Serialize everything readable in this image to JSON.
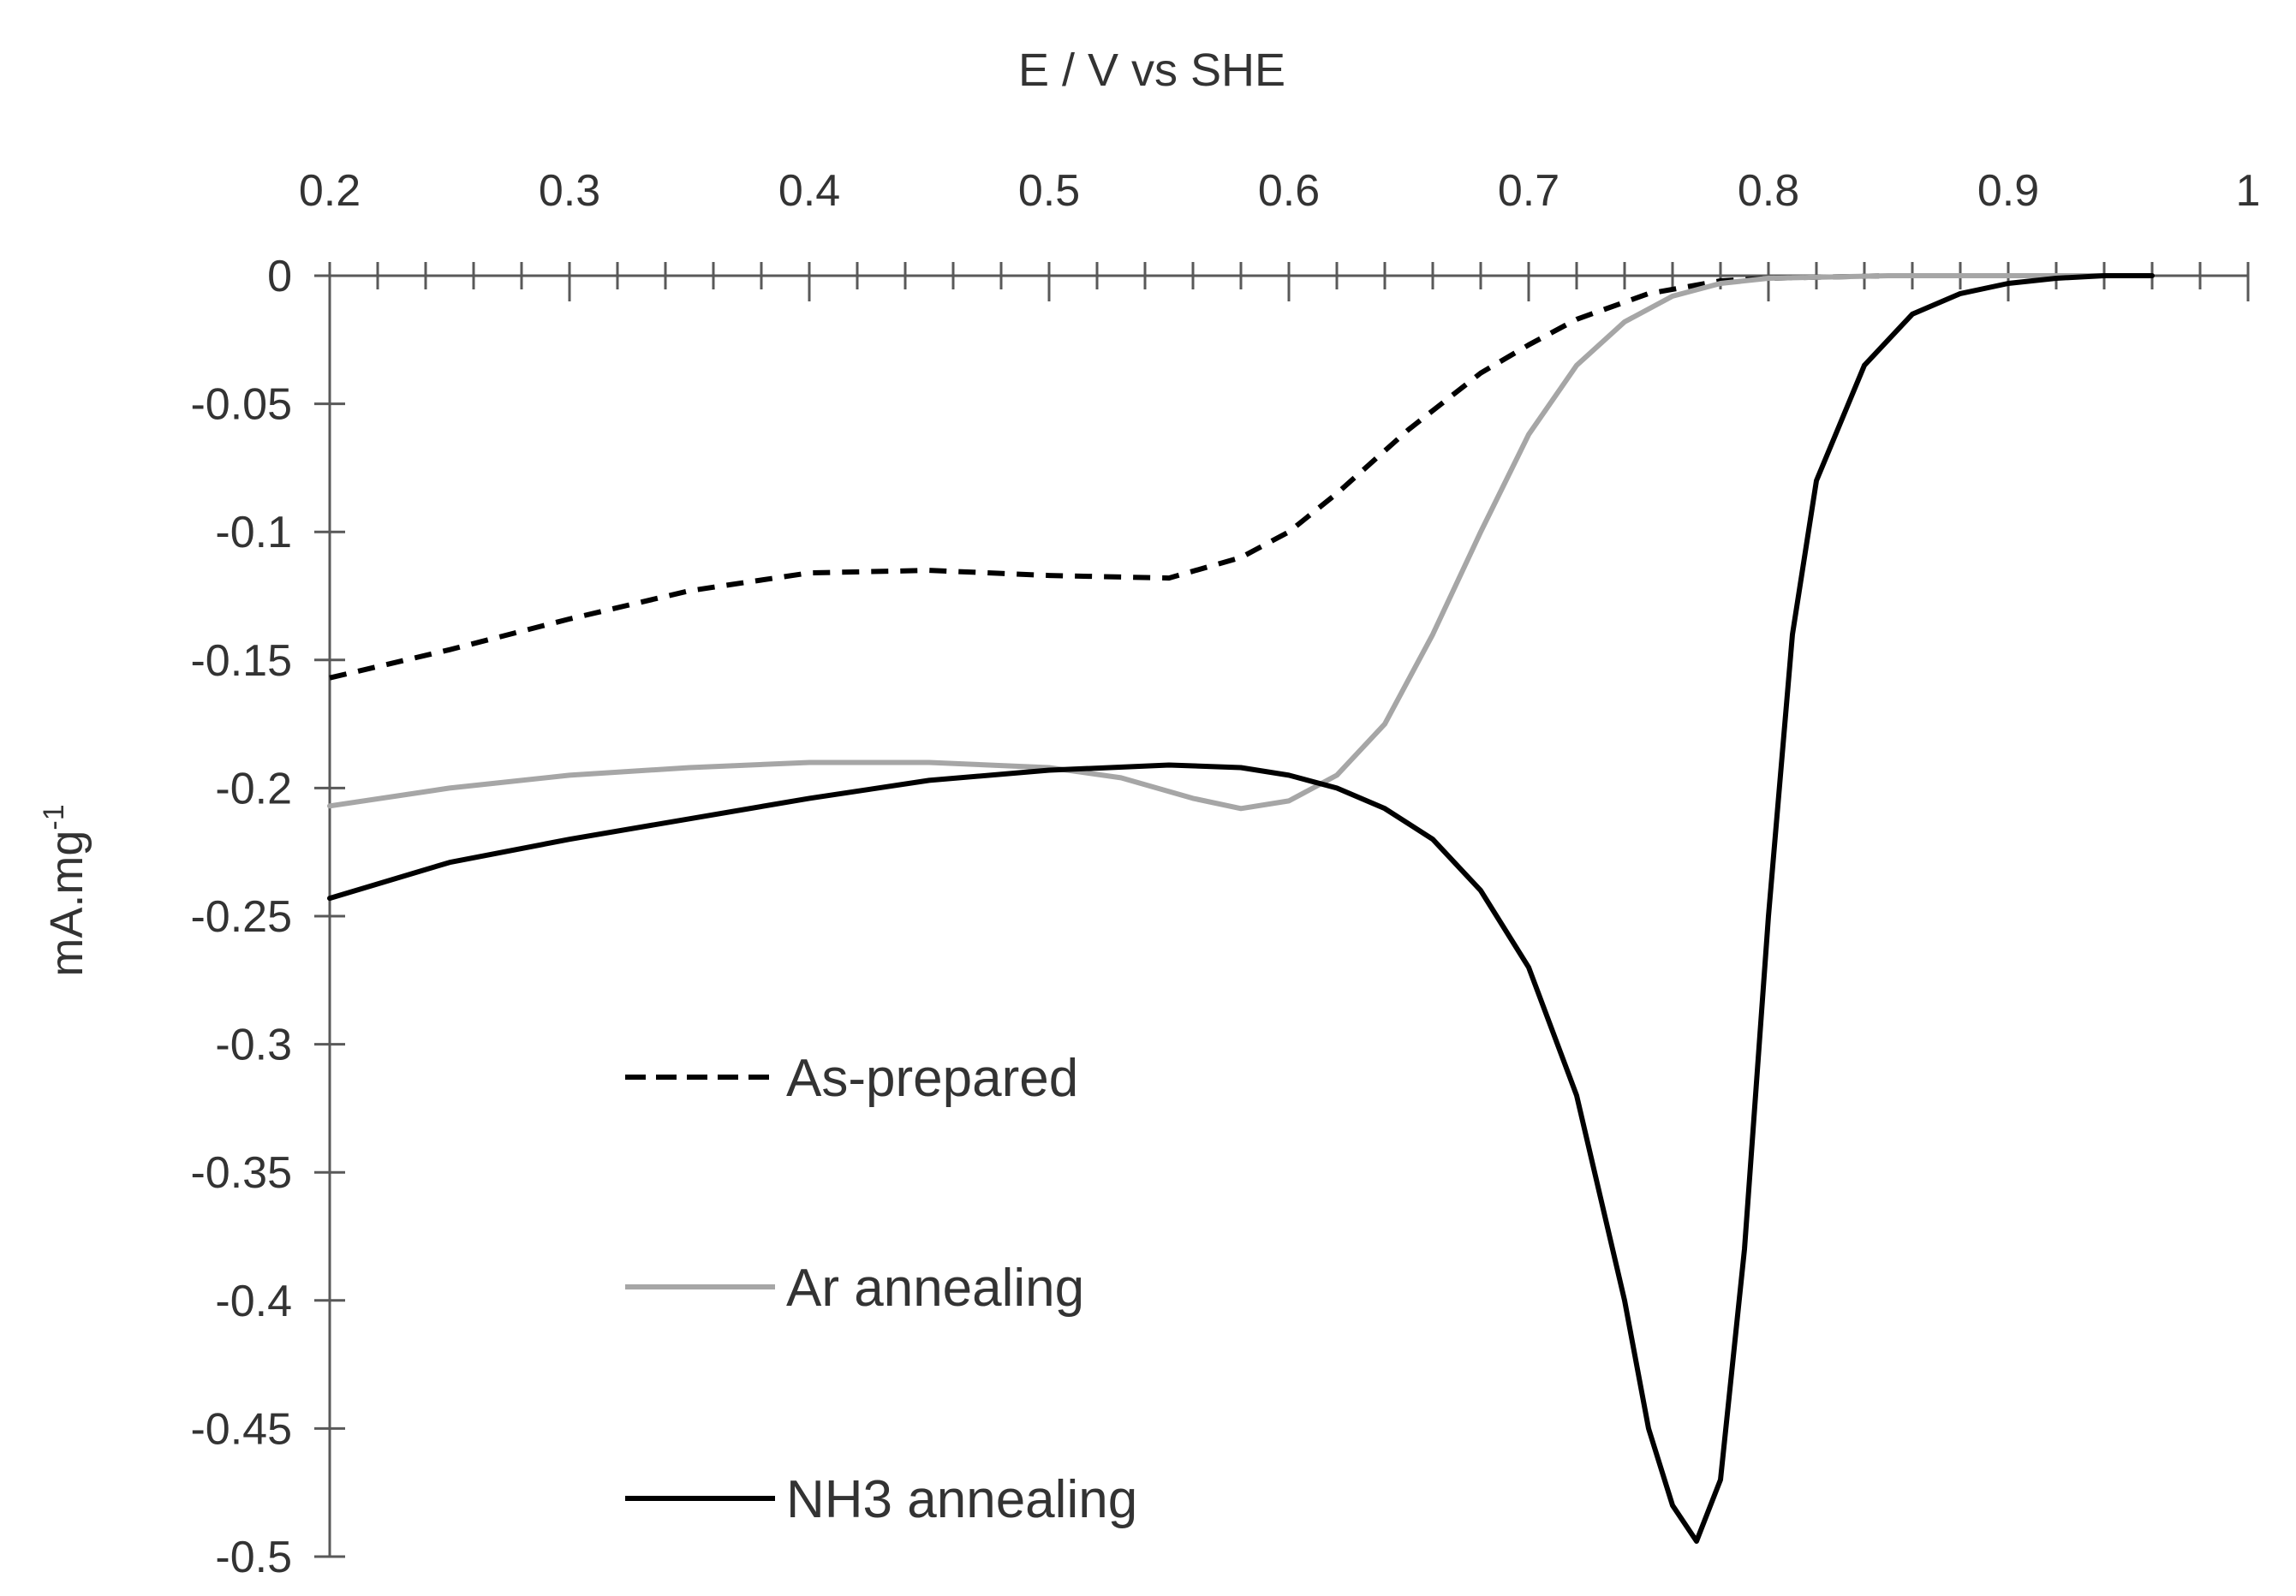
{
  "chart_data": {
    "type": "line",
    "title": "",
    "xlabel": "E / V vs SHE",
    "ylabel_main": "mA.mg",
    "ylabel_sup": "-1",
    "xlim": [
      0.2,
      1.0
    ],
    "ylim": [
      -0.5,
      0
    ],
    "x_ticks": [
      0.2,
      0.3,
      0.4,
      0.5,
      0.6,
      0.7,
      0.8,
      0.9,
      1
    ],
    "x_tick_labels": [
      "0.2",
      "0.3",
      "0.4",
      "0.5",
      "0.6",
      "0.7",
      "0.8",
      "0.9",
      "1"
    ],
    "x_minor_step": 0.02,
    "y_ticks": [
      0,
      -0.05,
      -0.1,
      -0.15,
      -0.2,
      -0.25,
      -0.3,
      -0.35,
      -0.4,
      -0.45,
      -0.5
    ],
    "y_tick_labels": [
      "0",
      "-0.05",
      "-0.1",
      "-0.15",
      "-0.2",
      "-0.25",
      "-0.3",
      "-0.35",
      "-0.4",
      "-0.45",
      "-0.5"
    ],
    "grid": false,
    "legend_position": "lower-left inside",
    "series": [
      {
        "name": "As-prepared",
        "style": "dashed",
        "color": "#000000",
        "x": [
          0.2,
          0.25,
          0.3,
          0.35,
          0.4,
          0.45,
          0.5,
          0.55,
          0.58,
          0.6,
          0.62,
          0.65,
          0.68,
          0.7,
          0.72,
          0.75,
          0.78,
          0.8,
          0.85,
          0.9,
          0.95
        ],
        "y": [
          -0.157,
          -0.146,
          -0.134,
          -0.123,
          -0.116,
          -0.115,
          -0.117,
          -0.118,
          -0.11,
          -0.1,
          -0.085,
          -0.06,
          -0.038,
          -0.027,
          -0.017,
          -0.007,
          -0.002,
          -0.001,
          0,
          0,
          0
        ]
      },
      {
        "name": "Ar annealing",
        "style": "solid",
        "color": "#a6a6a6",
        "x": [
          0.2,
          0.25,
          0.3,
          0.35,
          0.4,
          0.45,
          0.5,
          0.53,
          0.56,
          0.58,
          0.6,
          0.62,
          0.64,
          0.66,
          0.68,
          0.7,
          0.72,
          0.74,
          0.76,
          0.78,
          0.8,
          0.85,
          0.9,
          0.95
        ],
        "y": [
          -0.207,
          -0.2,
          -0.195,
          -0.192,
          -0.19,
          -0.19,
          -0.192,
          -0.196,
          -0.204,
          -0.208,
          -0.205,
          -0.195,
          -0.175,
          -0.14,
          -0.1,
          -0.062,
          -0.035,
          -0.018,
          -0.008,
          -0.003,
          -0.001,
          0,
          0,
          0
        ]
      },
      {
        "name": "NH3 annealing",
        "style": "solid",
        "color": "#000000",
        "x": [
          0.2,
          0.25,
          0.3,
          0.35,
          0.4,
          0.45,
          0.5,
          0.55,
          0.58,
          0.6,
          0.62,
          0.64,
          0.66,
          0.68,
          0.7,
          0.72,
          0.74,
          0.75,
          0.76,
          0.77,
          0.78,
          0.79,
          0.8,
          0.81,
          0.82,
          0.84,
          0.86,
          0.88,
          0.9,
          0.92,
          0.94,
          0.96
        ],
        "y": [
          -0.243,
          -0.229,
          -0.22,
          -0.212,
          -0.204,
          -0.197,
          -0.193,
          -0.191,
          -0.192,
          -0.195,
          -0.2,
          -0.208,
          -0.22,
          -0.24,
          -0.27,
          -0.32,
          -0.4,
          -0.45,
          -0.48,
          -0.494,
          -0.47,
          -0.38,
          -0.25,
          -0.14,
          -0.08,
          -0.035,
          -0.015,
          -0.007,
          -0.003,
          -0.001,
          0,
          0
        ]
      }
    ]
  }
}
